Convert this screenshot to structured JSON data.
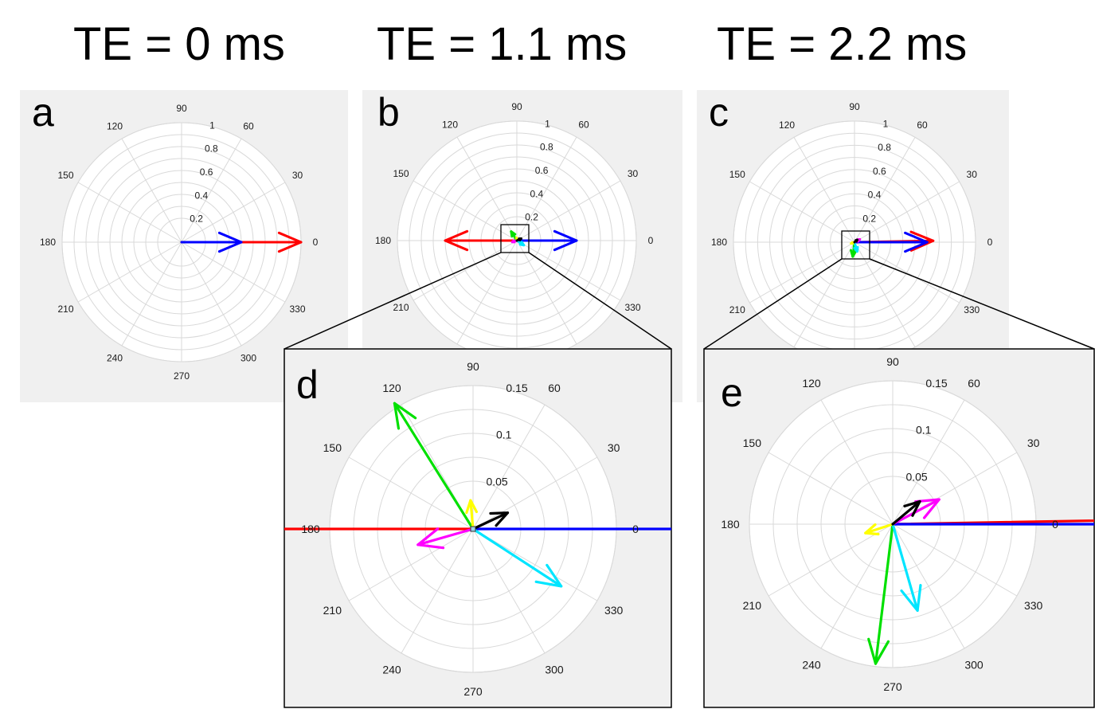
{
  "titles": {
    "te0": "TE = 0 ms",
    "te1": "TE = 1.1 ms",
    "te2": "TE = 2.2 ms"
  },
  "colors": {
    "background_panel": "#f0f0f0",
    "grid": "#d9d9d9",
    "vector_red": "#ff0000",
    "vector_blue": "#0000ff",
    "vector_green": "#00e000",
    "vector_cyan": "#00e5ff",
    "vector_magenta": "#ff00ff",
    "vector_yellow": "#ffff00",
    "vector_black": "#000000"
  },
  "panels": [
    {
      "id": "a",
      "letter": "a",
      "rmax": 1,
      "radial_ticks": [
        "0.2",
        "0.4",
        "0.6",
        "0.8",
        "1"
      ],
      "angle_ticks": [
        "0",
        "30",
        "60",
        "90",
        "120",
        "150",
        "180",
        "210",
        "240",
        "270",
        "300",
        "330"
      ],
      "vectors": [
        {
          "color": "vector_red",
          "magnitude": 1.0,
          "angle_deg": 0
        },
        {
          "color": "vector_blue",
          "magnitude": 0.5,
          "angle_deg": 0
        }
      ]
    },
    {
      "id": "b",
      "letter": "b",
      "rmax": 1,
      "radial_ticks": [
        "0.2",
        "0.4",
        "0.6",
        "0.8",
        "1"
      ],
      "angle_ticks": [
        "0",
        "30",
        "60",
        "90",
        "120",
        "150",
        "180",
        "210",
        "240",
        "270",
        "300",
        "330"
      ],
      "vectors": [
        {
          "color": "vector_red",
          "magnitude": 0.6,
          "angle_deg": 180
        },
        {
          "color": "vector_blue",
          "magnitude": 0.5,
          "angle_deg": 0
        },
        {
          "color": "vector_green",
          "magnitude": 0.09,
          "angle_deg": 122
        },
        {
          "color": "vector_cyan",
          "magnitude": 0.07,
          "angle_deg": 327
        },
        {
          "color": "vector_magenta",
          "magnitude": 0.04,
          "angle_deg": 196
        },
        {
          "color": "vector_yellow",
          "magnitude": 0.025,
          "angle_deg": 95
        },
        {
          "color": "vector_black",
          "magnitude": 0.04,
          "angle_deg": 25
        }
      ]
    },
    {
      "id": "c",
      "letter": "c",
      "rmax": 1,
      "radial_ticks": [
        "0.2",
        "0.4",
        "0.6",
        "0.8",
        "1"
      ],
      "angle_ticks": [
        "0",
        "30",
        "60",
        "90",
        "120",
        "150",
        "180",
        "210",
        "240",
        "270",
        "300",
        "330"
      ],
      "vectors": [
        {
          "color": "vector_red",
          "magnitude": 0.65,
          "angle_deg": 1
        },
        {
          "color": "vector_blue",
          "magnitude": 0.6,
          "angle_deg": 0
        },
        {
          "color": "vector_green",
          "magnitude": 0.12,
          "angle_deg": 263
        },
        {
          "color": "vector_cyan",
          "magnitude": 0.08,
          "angle_deg": 286
        },
        {
          "color": "vector_magenta",
          "magnitude": 0.05,
          "angle_deg": 28
        },
        {
          "color": "vector_yellow",
          "magnitude": 0.03,
          "angle_deg": 200
        },
        {
          "color": "vector_black",
          "magnitude": 0.03,
          "angle_deg": 40
        }
      ]
    },
    {
      "id": "d",
      "letter": "d",
      "rmax": 0.15,
      "radial_ticks": [
        "0.05",
        "0.1",
        "0.15"
      ],
      "angle_ticks": [
        "0",
        "30",
        "60",
        "90",
        "120",
        "150",
        "180",
        "210",
        "240",
        "270",
        "300",
        "330"
      ],
      "vectors": [
        {
          "color": "vector_red",
          "magnitude": 0.6,
          "angle_deg": 180
        },
        {
          "color": "vector_blue",
          "magnitude": 0.5,
          "angle_deg": 0
        },
        {
          "color": "vector_green",
          "magnitude": 0.155,
          "angle_deg": 122
        },
        {
          "color": "vector_cyan",
          "magnitude": 0.11,
          "angle_deg": 327
        },
        {
          "color": "vector_magenta",
          "magnitude": 0.06,
          "angle_deg": 196
        },
        {
          "color": "vector_yellow",
          "magnitude": 0.03,
          "angle_deg": 95
        },
        {
          "color": "vector_black",
          "magnitude": 0.04,
          "angle_deg": 25
        }
      ]
    },
    {
      "id": "e",
      "letter": "e",
      "rmax": 0.15,
      "radial_ticks": [
        "0.05",
        "0.1",
        "0.15"
      ],
      "angle_ticks": [
        "0",
        "30",
        "60",
        "90",
        "120",
        "150",
        "180",
        "210",
        "240",
        "270",
        "300",
        "330"
      ],
      "vectors": [
        {
          "color": "vector_red",
          "magnitude": 0.65,
          "angle_deg": 1
        },
        {
          "color": "vector_blue",
          "magnitude": 0.6,
          "angle_deg": 0
        },
        {
          "color": "vector_green",
          "magnitude": 0.147,
          "angle_deg": 263
        },
        {
          "color": "vector_cyan",
          "magnitude": 0.094,
          "angle_deg": 286
        },
        {
          "color": "vector_magenta",
          "magnitude": 0.055,
          "angle_deg": 28
        },
        {
          "color": "vector_yellow",
          "magnitude": 0.03,
          "angle_deg": 198
        },
        {
          "color": "vector_black",
          "magnitude": 0.037,
          "angle_deg": 40
        }
      ]
    }
  ]
}
